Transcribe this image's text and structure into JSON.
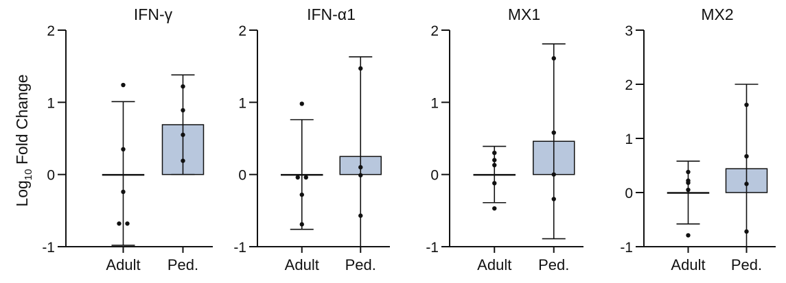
{
  "figure": {
    "ylabel_main": "Log",
    "ylabel_sub": "10",
    "ylabel_rest": " Fold Change"
  },
  "colors": {
    "adult": "#E4968A",
    "pediatric": "#B8C7DD",
    "stroke": "#111111"
  },
  "chart_data": [
    {
      "type": "bar",
      "title": "IFN-γ",
      "categories": [
        "Adult",
        "Ped."
      ],
      "ylim": [
        -1,
        2
      ],
      "yticks": [
        -1,
        0,
        1,
        2
      ],
      "grid": false,
      "series": [
        {
          "values": [
            0,
            0.69
          ],
          "error_low": [
            -0.98,
            0.0
          ],
          "error_high": [
            1.01,
            1.38
          ],
          "points": [
            [
              1.24,
              0.35,
              -0.24,
              -0.68,
              -0.68
            ],
            [
              1.22,
              0.89,
              0.55,
              0.19
            ]
          ]
        }
      ]
    },
    {
      "type": "bar",
      "title": "IFN-α1",
      "categories": [
        "Adult",
        "Ped."
      ],
      "ylim": [
        -1,
        2
      ],
      "yticks": [
        -1,
        0,
        1,
        2
      ],
      "grid": false,
      "series": [
        {
          "values": [
            0,
            0.25
          ],
          "error_low": [
            -0.76,
            -1.0
          ],
          "error_high": [
            0.76,
            1.63
          ],
          "points": [
            [
              0.98,
              -0.04,
              -0.04,
              -0.28,
              -0.69
            ],
            [
              1.47,
              0.1,
              -0.01,
              -0.57
            ]
          ]
        }
      ]
    },
    {
      "type": "bar",
      "title": "MX1",
      "categories": [
        "Adult",
        "Ped."
      ],
      "ylim": [
        -1,
        2
      ],
      "yticks": [
        -1,
        0,
        1,
        2
      ],
      "grid": false,
      "series": [
        {
          "values": [
            0,
            0.46
          ],
          "error_low": [
            -0.39,
            -0.89
          ],
          "error_high": [
            0.39,
            1.81
          ],
          "points": [
            [
              0.3,
              0.2,
              0.13,
              -0.12,
              -0.47
            ],
            [
              1.61,
              0.58,
              0.0,
              -0.34
            ]
          ]
        }
      ]
    },
    {
      "type": "bar",
      "title": "MX2",
      "categories": [
        "Adult",
        "Ped."
      ],
      "ylim": [
        -1,
        3
      ],
      "yticks": [
        -1,
        0,
        1,
        2,
        3
      ],
      "grid": false,
      "series": [
        {
          "values": [
            0,
            0.44
          ],
          "error_low": [
            -0.58,
            -1.0
          ],
          "error_high": [
            0.58,
            2.0
          ],
          "points": [
            [
              0.38,
              0.22,
              0.18,
              0.05,
              -0.79
            ],
            [
              1.62,
              0.67,
              0.16,
              -0.72
            ]
          ]
        }
      ]
    }
  ]
}
